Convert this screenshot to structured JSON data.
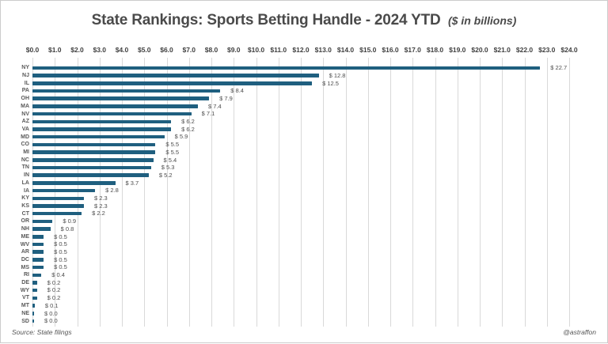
{
  "title": {
    "main": "State Rankings: Sports Betting Handle - 2024 YTD",
    "suffix": "($ in billions)"
  },
  "footer": {
    "source": "Source: State filings",
    "handle": "@astraffon"
  },
  "chart_data": {
    "type": "bar",
    "orientation": "horizontal",
    "title": "State Rankings: Sports Betting Handle - 2024 YTD ($ in billions)",
    "categories": [
      "NY",
      "NJ",
      "IL",
      "PA",
      "OH",
      "MA",
      "NV",
      "AZ",
      "VA",
      "MD",
      "CO",
      "MI",
      "NC",
      "TN",
      "IN",
      "LA",
      "IA",
      "KY",
      "KS",
      "CT",
      "OR",
      "NH",
      "ME",
      "WV",
      "AR",
      "DC",
      "MS",
      "RI",
      "DE",
      "WY",
      "VT",
      "MT",
      "NE",
      "SD"
    ],
    "values": [
      22.7,
      12.8,
      12.5,
      8.4,
      7.9,
      7.4,
      7.1,
      6.2,
      6.2,
      5.9,
      5.5,
      5.5,
      5.4,
      5.3,
      5.2,
      3.7,
      2.8,
      2.3,
      2.3,
      2.2,
      0.9,
      0.8,
      0.5,
      0.5,
      0.5,
      0.5,
      0.5,
      0.4,
      0.2,
      0.2,
      0.2,
      0.1,
      0.0,
      0.0
    ],
    "value_labels": [
      "$ 22.7",
      "$ 12.8",
      "$ 12.5",
      "$ 8.4",
      "$ 7.9",
      "$ 7.4",
      "$ 7.1",
      "$ 6.2",
      "$ 6.2",
      "$ 5.9",
      "$ 5.5",
      "$ 5.5",
      "$ 5.4",
      "$ 5.3",
      "$ 5.2",
      "$ 3.7",
      "$ 2.8",
      "$ 2.3",
      "$ 2.3",
      "$ 2.2",
      "$ 0.9",
      "$ 0.8",
      "$ 0.5",
      "$ 0.5",
      "$ 0.5",
      "$ 0.5",
      "$ 0.5",
      "$ 0.4",
      "$ 0.2",
      "$ 0.2",
      "$ 0.2",
      "$ 0.1",
      "$ 0.0",
      "$ 0.0"
    ],
    "x_ticks": [
      "$0.0",
      "$1.0",
      "$2.0",
      "$3.0",
      "$4.0",
      "$5.0",
      "$6.0",
      "$7.0",
      "$8.0",
      "$9.0",
      "$10.0",
      "$11.0",
      "$12.0",
      "$13.0",
      "$14.0",
      "$15.0",
      "$16.0",
      "$17.0",
      "$18.0",
      "$19.0",
      "$20.0",
      "$21.0",
      "$22.0",
      "$23.0",
      "$24.0"
    ],
    "xlim": [
      0,
      24
    ],
    "grid": true,
    "legend": "none",
    "bar_color": "#1F5F7F",
    "xlabel": "",
    "ylabel": ""
  }
}
